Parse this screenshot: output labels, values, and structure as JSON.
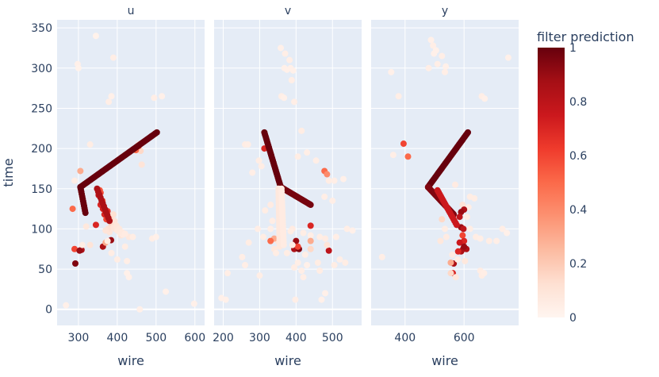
{
  "chart_data": {
    "type": "scatter",
    "ylabel": "time",
    "xlabel": "wire",
    "ylim": [
      -20,
      360
    ],
    "yticks": [
      0,
      50,
      100,
      150,
      200,
      250,
      300,
      350
    ],
    "grid": true,
    "colorbar": {
      "title": "filter prediction",
      "range": [
        0,
        1
      ],
      "ticks": [
        0,
        0.2,
        0.4,
        0.6,
        0.8,
        1
      ],
      "tick_labels": [
        "0",
        "0.2",
        "0.4",
        "0.6",
        "0.8",
        "1"
      ],
      "colorscale": "Reds",
      "stops": [
        "#fff5f0",
        "#fee0d2",
        "#fcbba1",
        "#fc9272",
        "#fb6a4a",
        "#ef3b2c",
        "#cb181d",
        "#a50f15",
        "#67000d"
      ]
    },
    "panels": [
      {
        "title": "u",
        "xlim": [
          245,
          625
        ],
        "xticks": [
          300,
          400,
          500,
          600
        ],
        "points": [
          [
            345,
            340,
            0.02
          ],
          [
            298,
            305,
            0.03
          ],
          [
            390,
            313,
            0.04
          ],
          [
            300,
            300,
            0.02
          ],
          [
            495,
            263,
            0.04
          ],
          [
            515,
            265,
            0.03
          ],
          [
            378,
            258,
            0.04
          ],
          [
            385,
            265,
            0.03
          ],
          [
            330,
            205,
            0.05
          ],
          [
            455,
            205,
            0.1
          ],
          [
            460,
            197,
            0.15
          ],
          [
            463,
            180,
            0.1
          ],
          [
            305,
            172,
            0.3
          ],
          [
            290,
            160,
            0.05
          ],
          [
            285,
            125,
            0.5
          ],
          [
            345,
            105,
            0.7
          ],
          [
            330,
            80,
            0.1
          ],
          [
            290,
            75,
            0.6
          ],
          [
            308,
            74,
            0.85
          ],
          [
            303,
            73,
            0.9
          ],
          [
            292,
            57,
            0.95
          ],
          [
            363,
            78,
            0.85
          ],
          [
            370,
            83,
            0.3
          ],
          [
            384,
            86,
            0.9
          ],
          [
            410,
            92,
            0.1
          ],
          [
            430,
            90,
            0.08
          ],
          [
            440,
            90,
            0.05
          ],
          [
            420,
            78,
            0.05
          ],
          [
            425,
            60,
            0.04
          ],
          [
            425,
            45,
            0.03
          ],
          [
            430,
            40,
            0.03
          ],
          [
            385,
            70,
            0.05
          ],
          [
            375,
            85,
            0.05
          ],
          [
            400,
            62,
            0.05
          ],
          [
            490,
            88,
            0.04
          ],
          [
            500,
            90,
            0.03
          ],
          [
            525,
            22,
            0.03
          ],
          [
            458,
            0,
            0.03
          ],
          [
            598,
            7,
            0.03
          ],
          [
            268,
            5,
            0.03
          ],
          [
            310,
            80,
            0.05
          ],
          [
            320,
            103,
            0.08
          ],
          [
            357,
            130,
            0.7
          ],
          [
            352,
            142,
            0.75
          ],
          [
            363,
            125,
            0.72
          ],
          [
            367,
            118,
            0.7
          ],
          [
            372,
            112,
            0.6
          ],
          [
            375,
            122,
            0.65
          ],
          [
            380,
            110,
            0.2
          ],
          [
            385,
            105,
            0.15
          ],
          [
            390,
            102,
            0.1
          ],
          [
            395,
            100,
            0.1
          ],
          [
            400,
            98,
            0.08
          ],
          [
            407,
            95,
            0.07
          ],
          [
            415,
            93,
            0.06
          ],
          [
            362,
            135,
            0.5
          ],
          [
            357,
            145,
            0.6
          ],
          [
            355,
            148,
            0.55
          ],
          [
            390,
            118,
            0.12
          ],
          [
            393,
            110,
            0.1
          ],
          [
            398,
            104,
            0.09
          ],
          [
            405,
            100,
            0.08
          ],
          [
            412,
            96,
            0.07
          ],
          [
            420,
            94,
            0.06
          ],
          [
            380,
            96,
            0.1
          ],
          [
            376,
            100,
            0.12
          ],
          [
            370,
            98,
            0.1
          ],
          [
            382,
            112,
            0.15
          ],
          [
            455,
            203,
            0.6
          ],
          [
            448,
            198,
            0.5
          ]
        ],
        "tracks": [
          {
            "from": [
              305,
              152
            ],
            "to": [
              502,
              220
            ],
            "value": 1.0,
            "n": 60
          },
          {
            "from": [
              305,
              152
            ],
            "to": [
              318,
              120
            ],
            "value": 1.0,
            "n": 12
          },
          {
            "from": [
              348,
              150
            ],
            "to": [
              380,
              110
            ],
            "value": 0.85,
            "n": 12
          }
        ]
      },
      {
        "title": "v",
        "xlim": [
          175,
          580
        ],
        "xticks": [
          200,
          300,
          400,
          500
        ],
        "points": [
          [
            358,
            325,
            0.03
          ],
          [
            370,
            318,
            0.04
          ],
          [
            382,
            310,
            0.04
          ],
          [
            375,
            298,
            0.03
          ],
          [
            368,
            300,
            0.03
          ],
          [
            392,
            297,
            0.03
          ],
          [
            388,
            285,
            0.04
          ],
          [
            385,
            300,
            0.03
          ],
          [
            360,
            265,
            0.04
          ],
          [
            367,
            263,
            0.03
          ],
          [
            395,
            258,
            0.04
          ],
          [
            415,
            222,
            0.05
          ],
          [
            260,
            205,
            0.05
          ],
          [
            268,
            205,
            0.04
          ],
          [
            305,
            178,
            0.05
          ],
          [
            298,
            185,
            0.05
          ],
          [
            280,
            170,
            0.04
          ],
          [
            405,
            190,
            0.05
          ],
          [
            430,
            195,
            0.04
          ],
          [
            455,
            185,
            0.04
          ],
          [
            478,
            172,
            0.5
          ],
          [
            485,
            168,
            0.4
          ],
          [
            490,
            160,
            0.05
          ],
          [
            505,
            160,
            0.04
          ],
          [
            530,
            162,
            0.03
          ],
          [
            478,
            140,
            0.04
          ],
          [
            500,
            135,
            0.04
          ],
          [
            313,
            200,
            0.7
          ],
          [
            330,
            130,
            0.06
          ],
          [
            335,
            110,
            0.05
          ],
          [
            330,
            100,
            0.04
          ],
          [
            390,
            100,
            0.06
          ],
          [
            420,
            95,
            0.05
          ],
          [
            440,
            92,
            0.04
          ],
          [
            465,
            90,
            0.05
          ],
          [
            480,
            88,
            0.06
          ],
          [
            510,
            90,
            0.04
          ],
          [
            540,
            100,
            0.04
          ],
          [
            555,
            98,
            0.03
          ],
          [
            315,
            123,
            0.05
          ],
          [
            310,
            90,
            0.05
          ],
          [
            350,
            85,
            0.1
          ],
          [
            340,
            88,
            0.3
          ],
          [
            330,
            85,
            0.5
          ],
          [
            340,
            75,
            0.08
          ],
          [
            345,
            70,
            0.05
          ],
          [
            400,
            85,
            0.9
          ],
          [
            395,
            75,
            0.85
          ],
          [
            408,
            75,
            0.95
          ],
          [
            405,
            78,
            0.6
          ],
          [
            440,
            104,
            0.7
          ],
          [
            440,
            85,
            0.3
          ],
          [
            440,
            75,
            0.15
          ],
          [
            490,
            73,
            0.8
          ],
          [
            485,
            80,
            0.1
          ],
          [
            460,
            58,
            0.05
          ],
          [
            425,
            68,
            0.04
          ],
          [
            430,
            55,
            0.03
          ],
          [
            415,
            48,
            0.04
          ],
          [
            420,
            40,
            0.04
          ],
          [
            395,
            52,
            0.05
          ],
          [
            405,
            58,
            0.04
          ],
          [
            520,
            62,
            0.04
          ],
          [
            505,
            55,
            0.05
          ],
          [
            535,
            58,
            0.05
          ],
          [
            465,
            48,
            0.05
          ],
          [
            480,
            20,
            0.03
          ],
          [
            470,
            12,
            0.03
          ],
          [
            398,
            12,
            0.04
          ],
          [
            300,
            42,
            0.04
          ],
          [
            252,
            65,
            0.04
          ],
          [
            212,
            45,
            0.04
          ],
          [
            195,
            14,
            0.03
          ],
          [
            207,
            12,
            0.03
          ],
          [
            260,
            55,
            0.04
          ],
          [
            270,
            83,
            0.05
          ],
          [
            295,
            100,
            0.04
          ],
          [
            385,
            97,
            0.05
          ],
          [
            390,
            80,
            0.05
          ],
          [
            375,
            70,
            0.05
          ]
        ],
        "tracks": [
          {
            "from": [
              313,
              220
            ],
            "to": [
              358,
              152
            ],
            "value": 1.0,
            "n": 30
          },
          {
            "from": [
              358,
              152
            ],
            "to": [
              440,
              130
            ],
            "value": 0.97,
            "n": 30
          },
          {
            "from": [
              352,
              150
            ],
            "to": [
              355,
              78
            ],
            "value": 0.08,
            "n": 25
          },
          {
            "from": [
              360,
              150
            ],
            "to": [
              366,
              80
            ],
            "value": 0.06,
            "n": 22
          }
        ]
      },
      {
        "title": "y",
        "xlim": [
          285,
          785
        ],
        "xticks": [
          400,
          600
        ],
        "points": [
          [
            488,
            335,
            0.03
          ],
          [
            495,
            328,
            0.04
          ],
          [
            505,
            322,
            0.03
          ],
          [
            498,
            318,
            0.03
          ],
          [
            525,
            315,
            0.04
          ],
          [
            510,
            305,
            0.04
          ],
          [
            538,
            302,
            0.03
          ],
          [
            480,
            300,
            0.04
          ],
          [
            353,
            295,
            0.03
          ],
          [
            535,
            295,
            0.04
          ],
          [
            378,
            265,
            0.04
          ],
          [
            660,
            265,
            0.04
          ],
          [
            670,
            262,
            0.03
          ],
          [
            750,
            313,
            0.03
          ],
          [
            395,
            206,
            0.6
          ],
          [
            410,
            190,
            0.5
          ],
          [
            360,
            192,
            0.04
          ],
          [
            570,
            155,
            0.06
          ],
          [
            620,
            140,
            0.05
          ],
          [
            635,
            138,
            0.05
          ],
          [
            615,
            127,
            0.05
          ],
          [
            595,
            130,
            0.1
          ],
          [
            600,
            124,
            0.85
          ],
          [
            590,
            121,
            0.9
          ],
          [
            585,
            115,
            0.8
          ],
          [
            590,
            102,
            0.9
          ],
          [
            598,
            100,
            0.8
          ],
          [
            595,
            92,
            0.6
          ],
          [
            600,
            85,
            0.7
          ],
          [
            597,
            75,
            0.9
          ],
          [
            590,
            72,
            0.85
          ],
          [
            585,
            83,
            0.75
          ],
          [
            580,
            72,
            0.7
          ],
          [
            565,
            57,
            0.85
          ],
          [
            562,
            45,
            0.7
          ],
          [
            555,
            58,
            0.3
          ],
          [
            555,
            45,
            0.15
          ],
          [
            572,
            40,
            0.08
          ],
          [
            540,
            90,
            0.06
          ],
          [
            535,
            100,
            0.05
          ],
          [
            525,
            112,
            0.15
          ],
          [
            520,
            85,
            0.08
          ],
          [
            610,
            115,
            0.05
          ],
          [
            620,
            100,
            0.05
          ],
          [
            640,
            90,
            0.05
          ],
          [
            655,
            88,
            0.04
          ],
          [
            685,
            85,
            0.05
          ],
          [
            710,
            85,
            0.04
          ],
          [
            730,
            100,
            0.04
          ],
          [
            745,
            95,
            0.03
          ],
          [
            655,
            48,
            0.05
          ],
          [
            660,
            42,
            0.05
          ],
          [
            668,
            45,
            0.04
          ],
          [
            322,
            65,
            0.04
          ],
          [
            578,
            62,
            0.05
          ],
          [
            560,
            68,
            0.06
          ],
          [
            603,
            60,
            0.08
          ],
          [
            608,
            75,
            0.85
          ],
          [
            600,
            78,
            0.9
          ]
        ],
        "tracks": [
          {
            "from": [
              478,
              152
            ],
            "to": [
              613,
              220
            ],
            "value": 1.0,
            "n": 45
          },
          {
            "from": [
              478,
              152
            ],
            "to": [
              565,
              118
            ],
            "value": 0.95,
            "n": 30
          },
          {
            "from": [
              510,
              148
            ],
            "to": [
              575,
              105
            ],
            "value": 0.75,
            "n": 18
          }
        ]
      }
    ]
  }
}
